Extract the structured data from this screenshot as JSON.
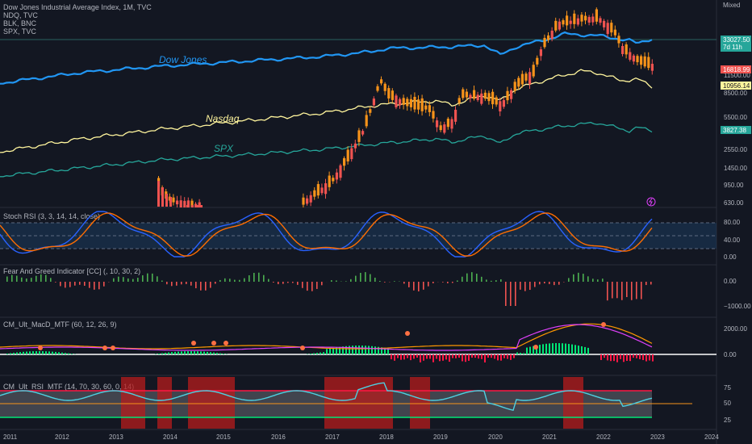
{
  "chart_data": {
    "type": "line",
    "main": {
      "legend": [
        "Dow Jones Industrial Average Index, 1M, TVC",
        "NDQ, TVC",
        "BLK, BNC",
        "SPX, TVC"
      ],
      "scale_label": "Mixed",
      "y_ticks": [
        "11500.00",
        "8500.00",
        "5500.00",
        "2550.00",
        "1450.00",
        "950.00",
        "630.00"
      ],
      "annotations": {
        "dow": "Dow Jones",
        "nasdaq": "Nasdaq",
        "spx": "SPX"
      },
      "badges": [
        {
          "key": "dji",
          "text": "33027.50",
          "sub": "7d 11h",
          "color": "#26a69a"
        },
        {
          "key": "blk",
          "text": "16818.99",
          "color": "#ef5350"
        },
        {
          "key": "ndq",
          "text": "10956.14",
          "color": "#fff59d"
        },
        {
          "key": "spx",
          "text": "3827.38",
          "color": "#26a69a"
        }
      ],
      "lightning_icon": "lightning-icon"
    },
    "x_axis": [
      "2011",
      "2012",
      "2013",
      "2014",
      "2015",
      "2016",
      "2017",
      "2018",
      "2019",
      "2020",
      "2021",
      "2022",
      "2023",
      "2024"
    ],
    "panels": [
      {
        "id": "stoch",
        "label": "Stoch RSI (3, 3, 14, 14, close)",
        "ticks": [
          "80.00",
          "40.00",
          "0.00"
        ]
      },
      {
        "id": "fg",
        "label": "Fear And Greed Indicator [CC] (, 10, 30, 2)",
        "ticks": [
          "0.00",
          "−1000.00"
        ]
      },
      {
        "id": "macd",
        "label": "CM_Ult_MacD_MTF (60, 12, 26, 9)",
        "ticks": [
          "2000.00",
          "0.00"
        ]
      },
      {
        "id": "rsi",
        "label": "CM_Ult_RSI_MTF (14, 70, 30, 60, 0, 14)",
        "ticks": [
          "75",
          "50",
          "25"
        ]
      }
    ],
    "colors": {
      "dow": "#2196f3",
      "nasdaq": "#fff59d",
      "spx": "#26a69a",
      "up": "#f7931a",
      "down": "#ef5350",
      "bg": "#131722"
    }
  }
}
